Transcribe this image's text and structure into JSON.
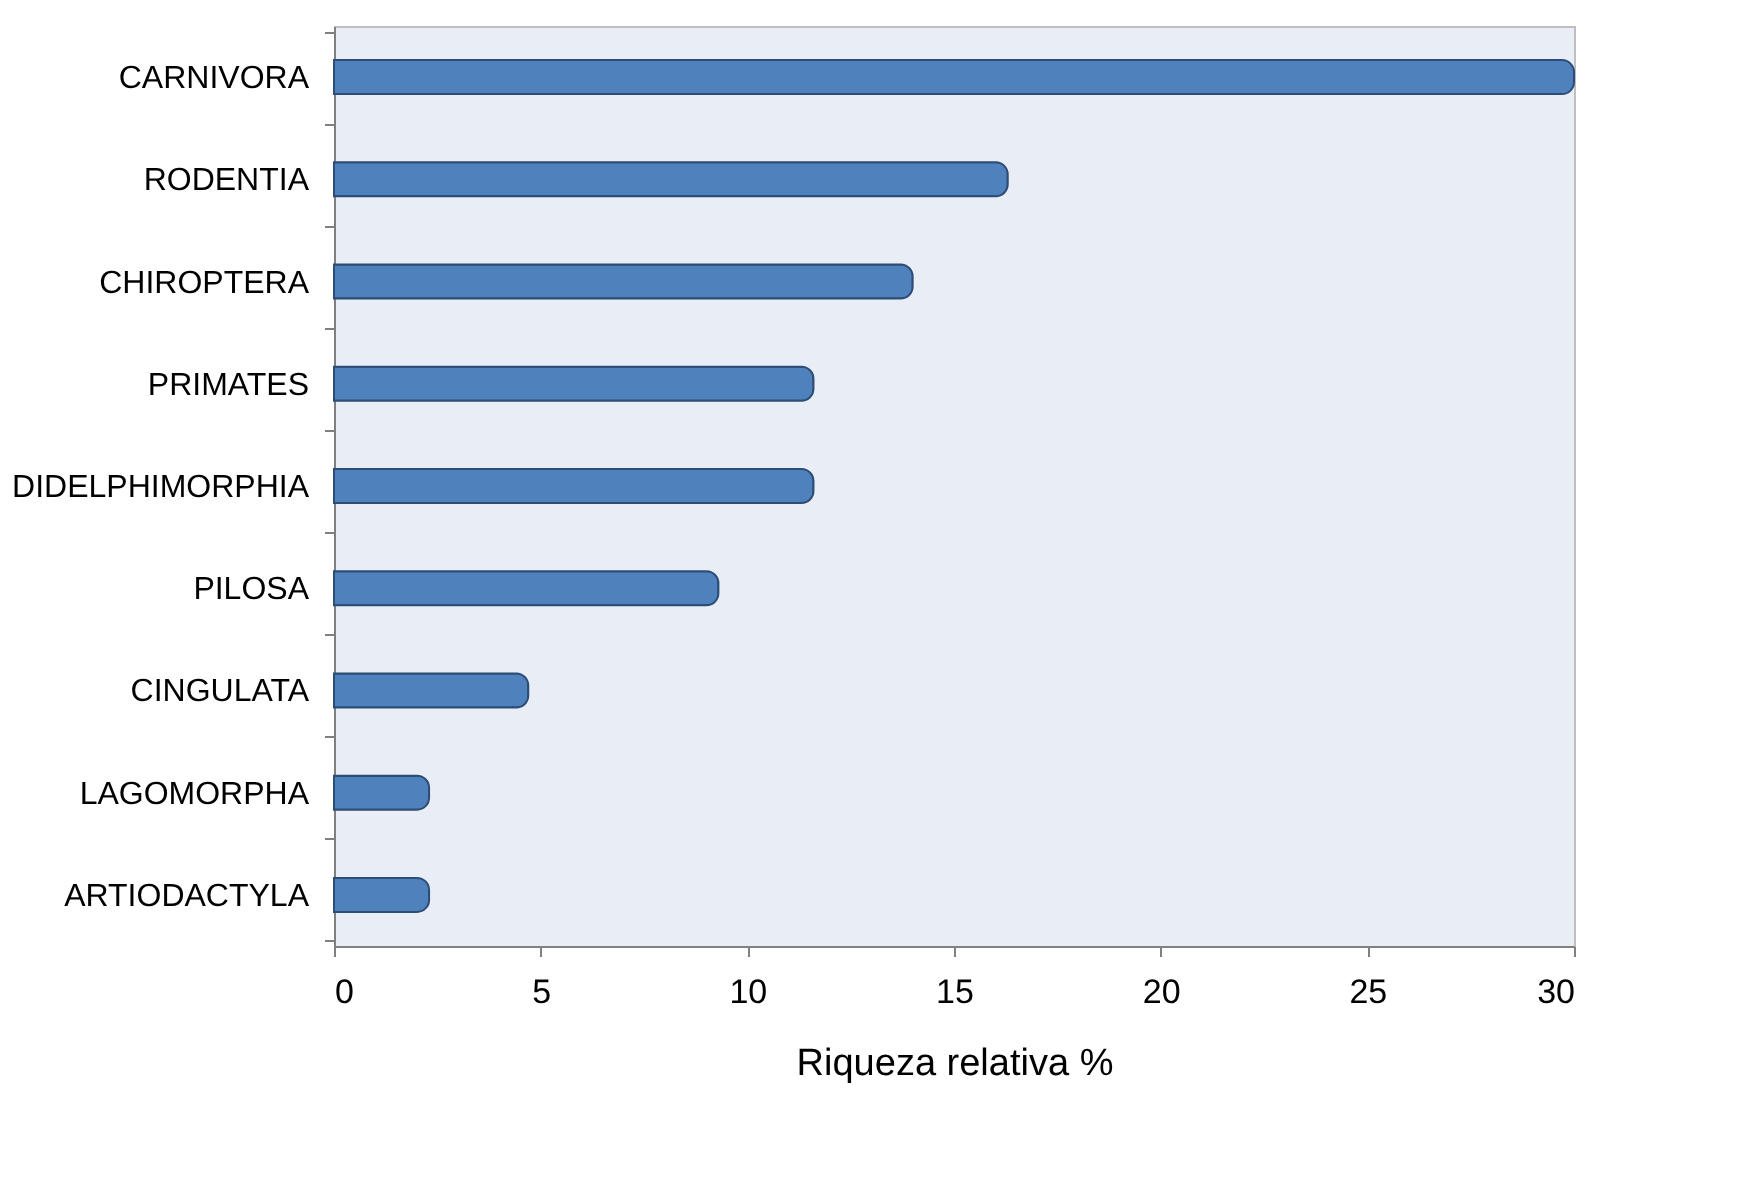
{
  "chart_data": {
    "type": "bar",
    "orientation": "horizontal",
    "xlabel": "Riqueza relativa %",
    "categories": [
      "CARNIVORA",
      "RODENTIA",
      "CHIROPTERA",
      "PRIMATES",
      "DIDELPHIMORPHIA",
      "PILOSA",
      "CINGULATA",
      "LAGOMORPHA",
      "ARTIODACTYLA"
    ],
    "values": [
      30,
      16.3,
      14.0,
      11.6,
      11.6,
      9.3,
      4.7,
      2.3,
      2.3
    ],
    "color": "#4f81bd",
    "xlim": [
      0,
      30
    ],
    "xticks": [
      0,
      5,
      10,
      15,
      20,
      25,
      30
    ],
    "grid": false
  }
}
